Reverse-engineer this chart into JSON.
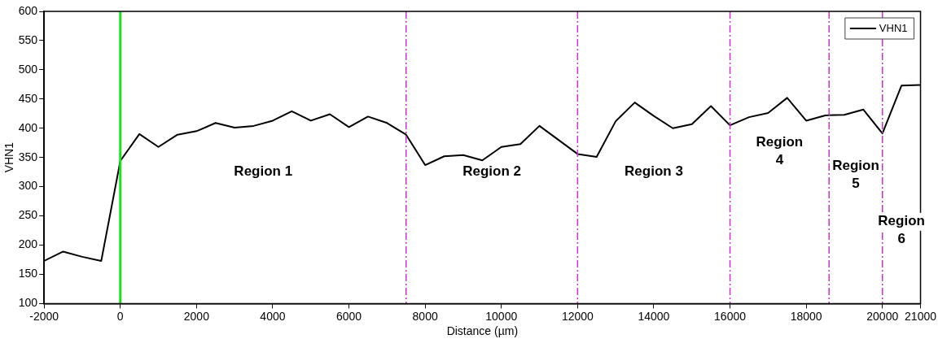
{
  "chart_data": {
    "type": "line",
    "xlabel": "Distance (µm)",
    "ylabel": "VHN1",
    "x": [
      -2000,
      -1500,
      -1000,
      -500,
      0,
      500,
      1000,
      1500,
      2000,
      2500,
      3000,
      3500,
      4000,
      4500,
      5000,
      5500,
      6000,
      6500,
      7000,
      7500,
      8000,
      8500,
      9000,
      9500,
      10000,
      10500,
      11000,
      11500,
      12000,
      12500,
      13000,
      13500,
      14000,
      14500,
      15000,
      15500,
      16000,
      16500,
      17000,
      17500,
      18000,
      18500,
      19000,
      19500,
      20000,
      20500,
      21000
    ],
    "series": [
      {
        "name": "VHN1",
        "color": "#000000",
        "values": [
          173,
          189,
          180,
          173,
          344,
          390,
          368,
          389,
          395,
          409,
          401,
          404,
          413,
          429,
          413,
          424,
          402,
          420,
          409,
          389,
          337,
          352,
          354,
          345,
          368,
          373,
          404,
          380,
          356,
          351,
          412,
          444,
          421,
          400,
          407,
          438,
          405,
          419,
          426,
          452,
          413,
          422,
          423,
          432,
          391,
          473,
          474
        ]
      }
    ],
    "xlim": [
      -2000,
      21000
    ],
    "xticks": [
      -2000,
      0,
      2000,
      4000,
      6000,
      8000,
      10000,
      12000,
      14000,
      16000,
      18000,
      20000,
      21000
    ],
    "ylim": [
      100,
      600
    ],
    "yticks": [
      100,
      150,
      200,
      250,
      300,
      350,
      400,
      450,
      500,
      550,
      600
    ],
    "grid": false,
    "legend": "top right",
    "marker": "none",
    "line_style": "solid",
    "ref_lines": [
      {
        "axis": "x",
        "value": 0,
        "color": "#22dd22",
        "line_style": "solid"
      },
      {
        "axis": "x",
        "value": 7500,
        "color": "#cc33cc",
        "line_style": "dashed"
      },
      {
        "axis": "x",
        "value": 12000,
        "color": "#cc33cc",
        "line_style": "dashed"
      },
      {
        "axis": "x",
        "value": 16000,
        "color": "#cc33cc",
        "line_style": "dashed"
      },
      {
        "axis": "x",
        "value": 18600,
        "color": "#cc33cc",
        "line_style": "dashed"
      },
      {
        "axis": "x",
        "value": 20000,
        "color": "#cc33cc",
        "line_style": "dashed"
      }
    ],
    "annotations": [
      "Region 1",
      "Region 2",
      "Region 3",
      "Region\n4",
      "Region\n5",
      "Region\n6"
    ]
  }
}
